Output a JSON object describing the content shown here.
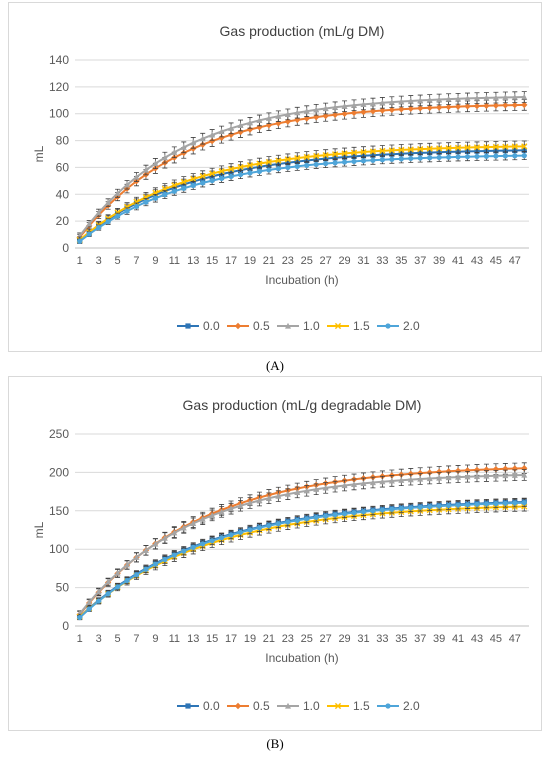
{
  "panels": [
    {
      "label": "(A)"
    },
    {
      "label": "(B)"
    }
  ],
  "chart_data": [
    {
      "type": "line",
      "title": "Gas production (mL/g DM)",
      "xlabel": "Incubation (h)",
      "ylabel": "mL",
      "ylim": [
        0,
        140
      ],
      "yticks": [
        0,
        20,
        40,
        60,
        80,
        100,
        120,
        140
      ],
      "xticks": [
        1,
        3,
        5,
        7,
        9,
        11,
        13,
        15,
        17,
        19,
        21,
        23,
        25,
        27,
        29,
        31,
        33,
        35,
        37,
        39,
        41,
        43,
        45,
        47
      ],
      "x_range": [
        1,
        48
      ],
      "grid": "horizontal",
      "legend": "bottom",
      "error_bars": true,
      "series": [
        {
          "name": "0.0",
          "color": "#2e75b6",
          "marker": "square",
          "asymptote": 74,
          "start": 6,
          "rate": 0.085,
          "error": 4
        },
        {
          "name": "0.5",
          "color": "#ed7d31",
          "marker": "diamond",
          "asymptote": 108,
          "start": 8,
          "rate": 0.09,
          "error": 4
        },
        {
          "name": "1.0",
          "color": "#a5a5a5",
          "marker": "triangle",
          "asymptote": 114,
          "start": 9,
          "rate": 0.09,
          "error": 4
        },
        {
          "name": "1.5",
          "color": "#ffc000",
          "marker": "x",
          "asymptote": 77,
          "start": 6,
          "rate": 0.085,
          "error": 4
        },
        {
          "name": "2.0",
          "color": "#4ea5d9",
          "marker": "circle",
          "asymptote": 70,
          "start": 5,
          "rate": 0.085,
          "error": 3
        }
      ]
    },
    {
      "type": "line",
      "title": "Gas production (mL/g degradable DM)",
      "xlabel": "Incubation (h)",
      "ylabel": "mL",
      "ylim": [
        0,
        250
      ],
      "yticks": [
        0,
        50,
        100,
        150,
        200,
        250
      ],
      "xticks": [
        1,
        3,
        5,
        7,
        9,
        11,
        13,
        15,
        17,
        19,
        21,
        23,
        25,
        27,
        29,
        31,
        33,
        35,
        37,
        39,
        41,
        43,
        45,
        47
      ],
      "x_range": [
        1,
        48
      ],
      "grid": "horizontal",
      "legend": "bottom",
      "error_bars": true,
      "series": [
        {
          "name": "0.0",
          "color": "#2e75b6",
          "marker": "square",
          "asymptote": 166,
          "start": 12,
          "rate": 0.075,
          "error": 5
        },
        {
          "name": "0.5",
          "color": "#ed7d31",
          "marker": "diamond",
          "asymptote": 210,
          "start": 15,
          "rate": 0.08,
          "error": 7
        },
        {
          "name": "1.0",
          "color": "#a5a5a5",
          "marker": "triangle",
          "asymptote": 200,
          "start": 16,
          "rate": 0.085,
          "error": 7
        },
        {
          "name": "1.5",
          "color": "#ffc000",
          "marker": "x",
          "asymptote": 160,
          "start": 12,
          "rate": 0.075,
          "error": 6
        },
        {
          "name": "2.0",
          "color": "#4ea5d9",
          "marker": "circle",
          "asymptote": 165,
          "start": 11,
          "rate": 0.075,
          "error": 5
        }
      ]
    }
  ]
}
